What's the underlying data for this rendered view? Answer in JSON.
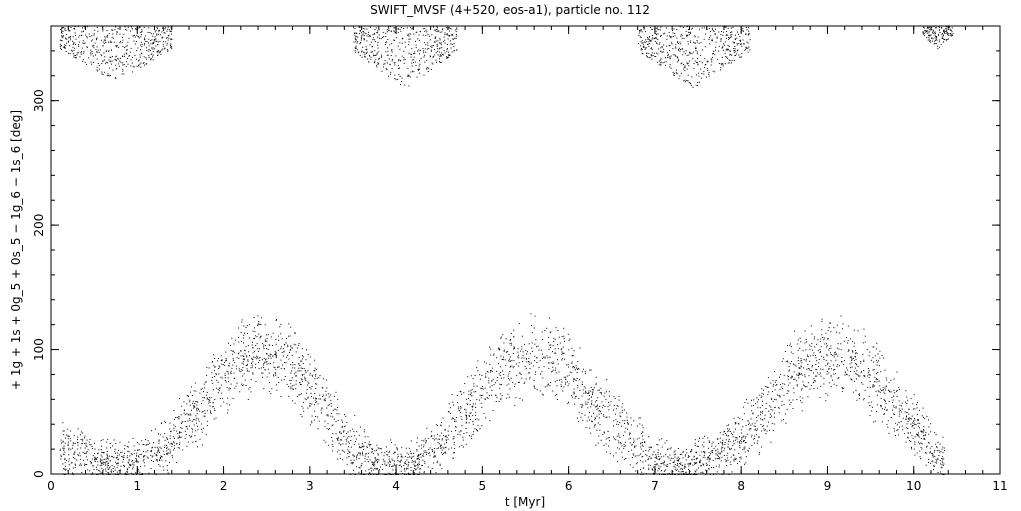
{
  "chart_data": {
    "type": "scatter",
    "title": "SWIFT_MVSF (4+520, eos-a1), particle no. 112",
    "xlabel": "t [Myr]",
    "ylabel": "+ 1g + 1s + 0g_5 + 0s_5 − 1g_6 − 1s_6 [deg]",
    "xlim": [
      0,
      11
    ],
    "ylim": [
      0,
      360
    ],
    "x_ticks": [
      0,
      1,
      2,
      3,
      4,
      5,
      6,
      7,
      8,
      9,
      10,
      11
    ],
    "y_ticks": [
      0,
      100,
      200,
      300
    ],
    "grid": false,
    "point_color": "#000000",
    "band_lower": {
      "x": [
        0.0,
        0.25,
        0.5,
        0.75,
        1.0,
        1.25,
        1.5,
        1.75,
        2.0,
        2.25,
        2.5,
        2.75,
        3.0,
        3.25,
        3.5,
        3.75,
        4.0,
        4.25,
        4.5,
        4.75,
        5.0,
        5.25,
        5.5,
        5.75,
        6.0,
        6.25,
        6.5,
        6.75,
        7.0,
        7.25,
        7.5,
        7.75,
        8.0,
        8.25,
        8.5,
        8.75,
        9.0,
        9.25,
        9.5,
        9.75,
        10.0,
        10.25,
        10.35
      ],
      "y": [
        22,
        18,
        12,
        10,
        12,
        20,
        35,
        55,
        80,
        95,
        98,
        90,
        70,
        45,
        22,
        10,
        8,
        12,
        25,
        45,
        65,
        85,
        95,
        95,
        85,
        62,
        40,
        25,
        12,
        8,
        10,
        18,
        30,
        50,
        72,
        88,
        95,
        92,
        78,
        58,
        38,
        18,
        10
      ],
      "spread": [
        18,
        18,
        15,
        15,
        15,
        18,
        22,
        25,
        28,
        28,
        28,
        28,
        28,
        25,
        22,
        15,
        15,
        15,
        20,
        25,
        28,
        28,
        28,
        28,
        28,
        28,
        25,
        22,
        15,
        15,
        15,
        18,
        22,
        25,
        28,
        28,
        28,
        28,
        28,
        25,
        22,
        18,
        15
      ]
    },
    "band_upper": [
      {
        "x_range": [
          0.1,
          1.4
        ],
        "y_range": [
          315,
          360
        ]
      },
      {
        "x_range": [
          3.5,
          4.7
        ],
        "y_range": [
          310,
          360
        ]
      },
      {
        "x_range": [
          6.8,
          8.1
        ],
        "y_range": [
          310,
          360
        ]
      },
      {
        "x_range": [
          10.1,
          10.45
        ],
        "y_range": [
          342,
          360
        ]
      }
    ]
  }
}
